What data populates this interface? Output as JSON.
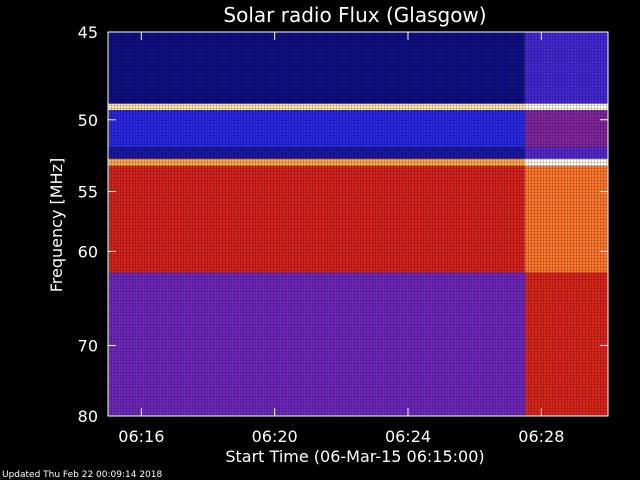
{
  "chart_data": {
    "type": "heatmap",
    "title": "Solar radio Flux (Glasgow)",
    "xlabel": "Start Time (06-Mar-15 06:15:00)",
    "ylabel": "Frequency [MHz]",
    "x_ticks": [
      "06:16",
      "06:20",
      "06:24",
      "06:28"
    ],
    "x_tick_minutes": [
      16,
      20,
      24,
      28
    ],
    "x_range_minutes": [
      15.0,
      30.0
    ],
    "y_ticks": [
      45,
      50,
      55,
      60,
      70,
      80
    ],
    "y_range": [
      45,
      80
    ],
    "y_scale": "reciprocal",
    "grid": false,
    "colormap": "black-blue-red-yellow-white",
    "burst_start_minute": 27.5,
    "bands": [
      {
        "f_min": 45.0,
        "f_max": 49.0,
        "level": 0.18
      },
      {
        "f_min": 49.0,
        "f_max": 49.4,
        "level": 0.95
      },
      {
        "f_min": 49.4,
        "f_max": 51.8,
        "level": 0.3
      },
      {
        "f_min": 51.8,
        "f_max": 52.6,
        "level": 0.22
      },
      {
        "f_min": 52.6,
        "f_max": 53.1,
        "level": 0.85
      },
      {
        "f_min": 53.1,
        "f_max": 62.0,
        "level": 0.62
      },
      {
        "f_min": 62.0,
        "f_max": 80.0,
        "level": 0.45
      }
    ],
    "footer": "Updated Thu Feb 22 00:09:14 2018"
  }
}
